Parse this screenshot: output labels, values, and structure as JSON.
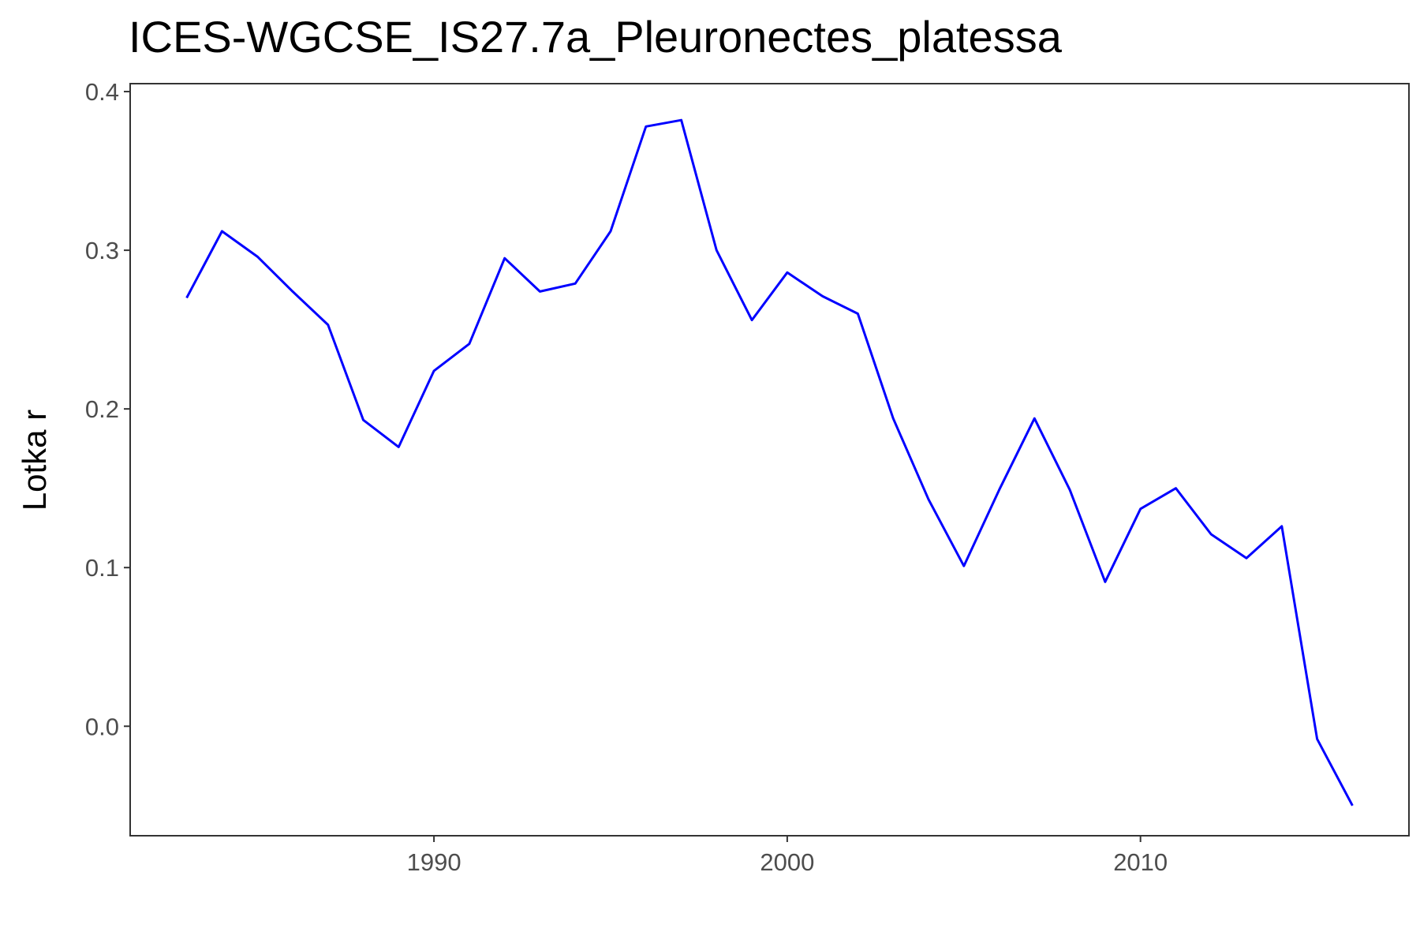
{
  "chart_data": {
    "type": "line",
    "title": "ICES-WGCSE_IS27.7a_Pleuronectes_platessa",
    "xlabel": "",
    "ylabel": "Lotka r",
    "xlim": [
      1981.4,
      2017.6
    ],
    "ylim": [
      -0.069,
      0.405
    ],
    "xticks": [
      1990,
      2000,
      2010
    ],
    "xtick_labels": [
      "1990",
      "2000",
      "2010"
    ],
    "yticks": [
      0.0,
      0.1,
      0.2,
      0.3,
      0.4
    ],
    "ytick_labels": [
      "0.0",
      "0.1",
      "0.2",
      "0.3",
      "0.4"
    ],
    "grid": false,
    "legend": "none",
    "line_color": "#0000ff",
    "x": [
      1983,
      1984,
      1985,
      1986,
      1987,
      1988,
      1989,
      1990,
      1991,
      1992,
      1993,
      1994,
      1995,
      1996,
      1997,
      1998,
      1999,
      2000,
      2001,
      2002,
      2003,
      2004,
      2005,
      2006,
      2007,
      2008,
      2009,
      2010,
      2011,
      2012,
      2013,
      2014,
      2015,
      2016
    ],
    "y": [
      0.27,
      0.312,
      0.296,
      0.274,
      0.253,
      0.193,
      0.176,
      0.224,
      0.241,
      0.295,
      0.274,
      0.279,
      0.312,
      0.378,
      0.382,
      0.3,
      0.256,
      0.286,
      0.271,
      0.26,
      0.194,
      0.143,
      0.101,
      0.149,
      0.194,
      0.149,
      0.091,
      0.137,
      0.15,
      0.121,
      0.106,
      0.126,
      -0.008,
      -0.05
    ]
  }
}
